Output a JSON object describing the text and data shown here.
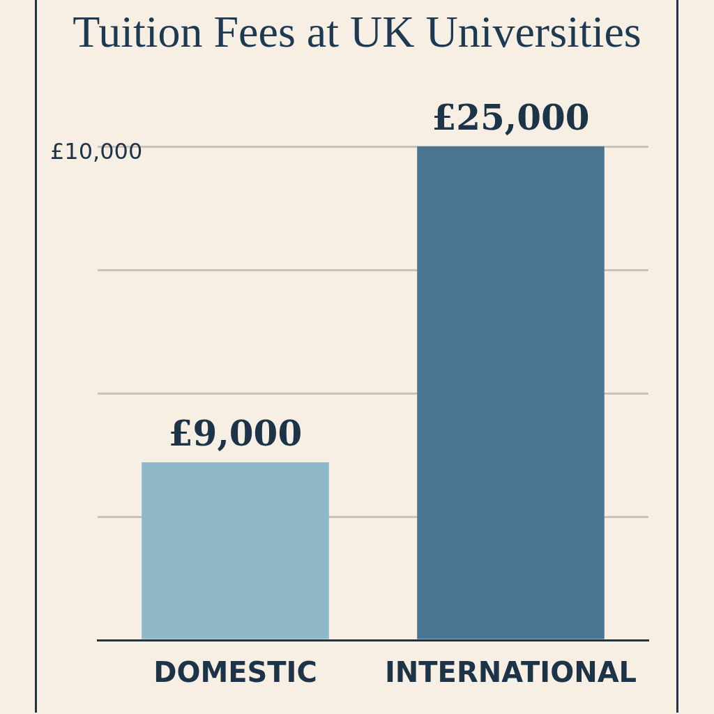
{
  "chart_data": {
    "type": "bar",
    "title": "Tuition Fees at UK Universities",
    "categories": [
      "DOMESTIC",
      "INTERNATIONAL"
    ],
    "values": [
      9000,
      25000
    ],
    "colors": [
      "#8fb9c9",
      "#4a7592"
    ],
    "tick_labels": "x",
    "grid": "y",
    "data_labels": true,
    "value_labels": [
      "£9,000",
      "£25,000"
    ],
    "annotations": [
      "£10,000"
    ]
  }
}
